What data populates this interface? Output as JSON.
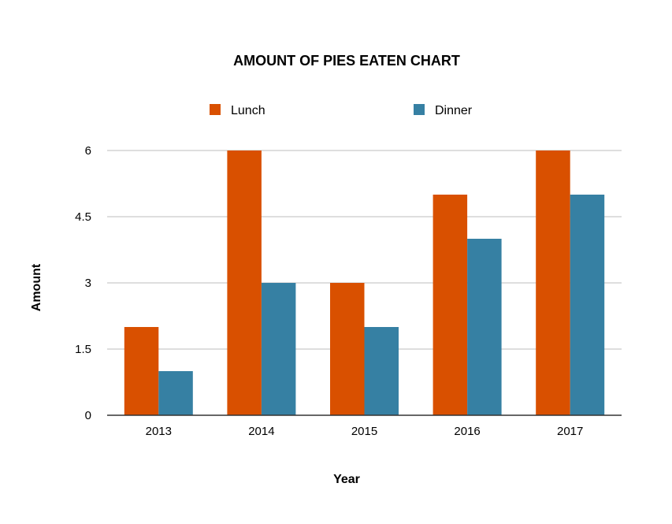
{
  "chart_data": {
    "type": "bar",
    "title": "AMOUNT OF PIES EATEN CHART",
    "xlabel": "Year",
    "ylabel": "Amount",
    "categories": [
      "2013",
      "2014",
      "2015",
      "2016",
      "2017"
    ],
    "series": [
      {
        "name": "Lunch",
        "color": "#d95000",
        "values": [
          2,
          6,
          3,
          5,
          6
        ]
      },
      {
        "name": "Dinner",
        "color": "#3680a3",
        "values": [
          1,
          3,
          2,
          4,
          5
        ]
      }
    ],
    "ylim": [
      0,
      6
    ],
    "yticks": [
      "0",
      "1.5",
      "3",
      "4.5",
      "6"
    ],
    "grid": true,
    "legend": "top"
  }
}
